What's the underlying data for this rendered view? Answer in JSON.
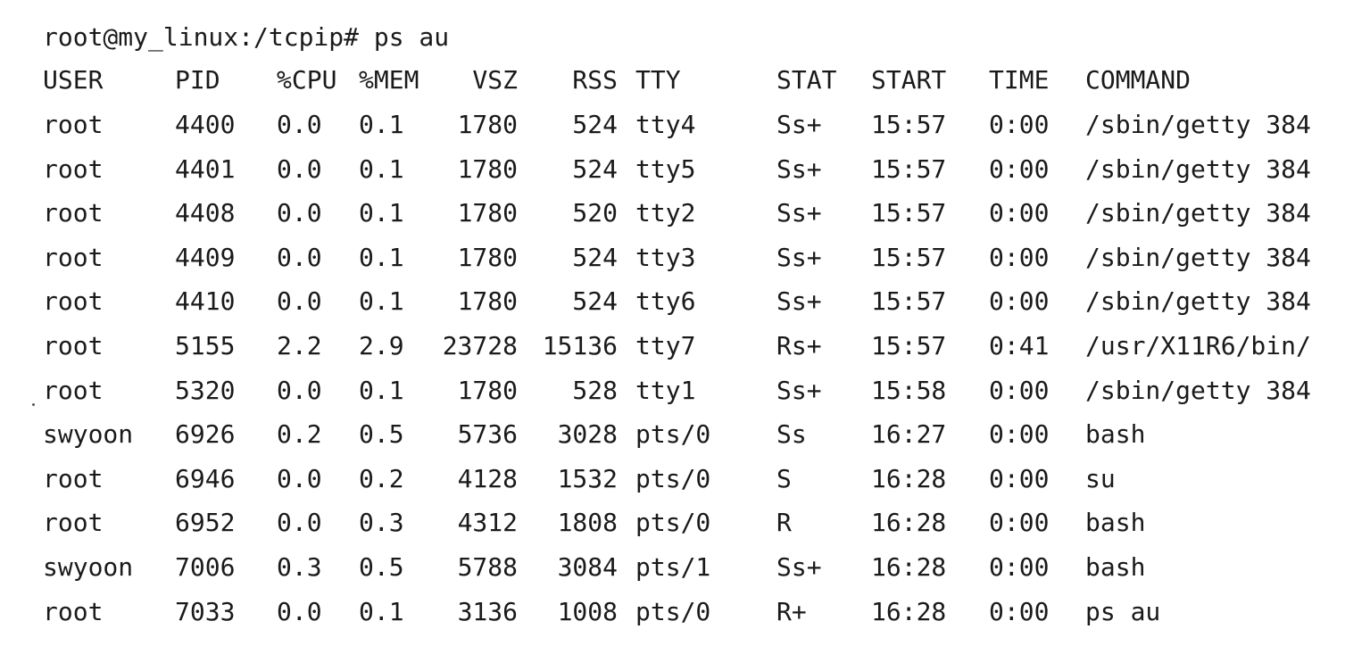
{
  "terminal": {
    "prompt": "root@my_linux:/tcpip# ps au",
    "columns": [
      "USER",
      "PID",
      "%CPU",
      "%MEM",
      "VSZ",
      "RSS",
      "TTY",
      "STAT",
      "START",
      "TIME",
      "COMMAND"
    ],
    "rows": [
      {
        "user": "root",
        "pid": "4400",
        "cpu": "0.0",
        "mem": "0.1",
        "vsz": "1780",
        "rss": "524",
        "tty": "tty4",
        "stat": "Ss+",
        "start": "15:57",
        "time": "0:00",
        "command": "/sbin/getty 384"
      },
      {
        "user": "root",
        "pid": "4401",
        "cpu": "0.0",
        "mem": "0.1",
        "vsz": "1780",
        "rss": "524",
        "tty": "tty5",
        "stat": "Ss+",
        "start": "15:57",
        "time": "0:00",
        "command": "/sbin/getty 384"
      },
      {
        "user": "root",
        "pid": "4408",
        "cpu": "0.0",
        "mem": "0.1",
        "vsz": "1780",
        "rss": "520",
        "tty": "tty2",
        "stat": "Ss+",
        "start": "15:57",
        "time": "0:00",
        "command": "/sbin/getty 384"
      },
      {
        "user": "root",
        "pid": "4409",
        "cpu": "0.0",
        "mem": "0.1",
        "vsz": "1780",
        "rss": "524",
        "tty": "tty3",
        "stat": "Ss+",
        "start": "15:57",
        "time": "0:00",
        "command": "/sbin/getty 384"
      },
      {
        "user": "root",
        "pid": "4410",
        "cpu": "0.0",
        "mem": "0.1",
        "vsz": "1780",
        "rss": "524",
        "tty": "tty6",
        "stat": "Ss+",
        "start": "15:57",
        "time": "0:00",
        "command": "/sbin/getty 384"
      },
      {
        "user": "root",
        "pid": "5155",
        "cpu": "2.2",
        "mem": "2.9",
        "vsz": "23728",
        "rss": "15136",
        "tty": "tty7",
        "stat": "Rs+",
        "start": "15:57",
        "time": "0:41",
        "command": "/usr/X11R6/bin/"
      },
      {
        "user": "root",
        "pid": "5320",
        "cpu": "0.0",
        "mem": "0.1",
        "vsz": "1780",
        "rss": "528",
        "tty": "tty1",
        "stat": "Ss+",
        "start": "15:58",
        "time": "0:00",
        "command": "/sbin/getty 384"
      },
      {
        "user": "swyoon",
        "pid": "6926",
        "cpu": "0.2",
        "mem": "0.5",
        "vsz": "5736",
        "rss": "3028",
        "tty": "pts/0",
        "stat": "Ss",
        "start": "16:27",
        "time": "0:00",
        "command": "bash"
      },
      {
        "user": "root",
        "pid": "6946",
        "cpu": "0.0",
        "mem": "0.2",
        "vsz": "4128",
        "rss": "1532",
        "tty": "pts/0",
        "stat": "S",
        "start": "16:28",
        "time": "0:00",
        "command": "su"
      },
      {
        "user": "root",
        "pid": "6952",
        "cpu": "0.0",
        "mem": "0.3",
        "vsz": "4312",
        "rss": "1808",
        "tty": "pts/0",
        "stat": "R",
        "start": "16:28",
        "time": "0:00",
        "command": "bash"
      },
      {
        "user": "swyoon",
        "pid": "7006",
        "cpu": "0.3",
        "mem": "0.5",
        "vsz": "5788",
        "rss": "3084",
        "tty": "pts/1",
        "stat": "Ss+",
        "start": "16:28",
        "time": "0:00",
        "command": "bash"
      },
      {
        "user": "root",
        "pid": "7033",
        "cpu": "0.0",
        "mem": "0.1",
        "vsz": "3136",
        "rss": "1008",
        "tty": "pts/0",
        "stat": "R+",
        "start": "16:28",
        "time": "0:00",
        "command": "ps au"
      }
    ]
  },
  "colors": {
    "background": "#ffffff",
    "text": "#1a1a1a"
  }
}
